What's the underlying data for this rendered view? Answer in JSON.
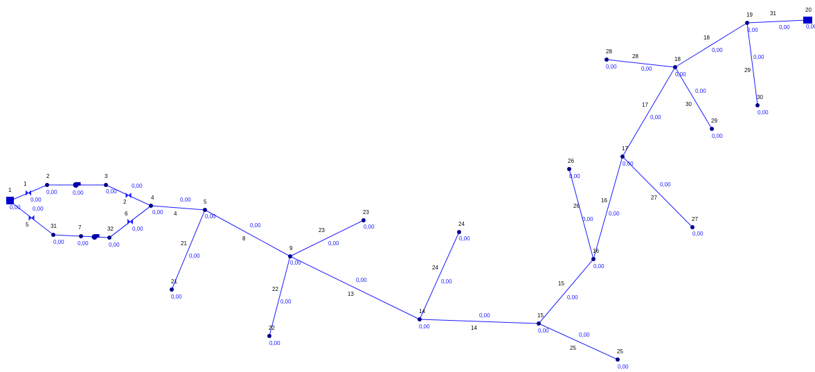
{
  "value_format": "0,00",
  "colors": {
    "pipe": "#1a1aff",
    "node": "#00008b",
    "label": "#000000",
    "value": "#1a1aff"
  },
  "nodes": [
    {
      "id": "1",
      "value": "0,00",
      "kind": "tank"
    },
    {
      "id": "2",
      "value": "0,00",
      "kind": "junction"
    },
    {
      "id": "3",
      "value": "0,00",
      "kind": "junction"
    },
    {
      "id": "4",
      "value": "0,00",
      "kind": "junction"
    },
    {
      "id": "5",
      "value": "0,00",
      "kind": "junction"
    },
    {
      "id": "7",
      "value": "0,00",
      "kind": "junction"
    },
    {
      "id": "9",
      "value": "0,00",
      "kind": "junction"
    },
    {
      "id": "14",
      "value": "0,00",
      "kind": "junction"
    },
    {
      "id": "15",
      "value": "0,00",
      "kind": "junction"
    },
    {
      "id": "16",
      "value": "0,00",
      "kind": "junction"
    },
    {
      "id": "17",
      "value": "0,00",
      "kind": "junction"
    },
    {
      "id": "18",
      "value": "0,00",
      "kind": "junction"
    },
    {
      "id": "19",
      "value": "0,00",
      "kind": "junction"
    },
    {
      "id": "20",
      "value": "0,00",
      "kind": "tank"
    },
    {
      "id": "21",
      "value": "0,00",
      "kind": "junction"
    },
    {
      "id": "22",
      "value": "0,00",
      "kind": "junction"
    },
    {
      "id": "23",
      "value": "0,00",
      "kind": "junction"
    },
    {
      "id": "24",
      "value": "0,00",
      "kind": "junction"
    },
    {
      "id": "25",
      "value": "0,00",
      "kind": "junction"
    },
    {
      "id": "26",
      "value": "0,00",
      "kind": "junction"
    },
    {
      "id": "27",
      "value": "0,00",
      "kind": "junction"
    },
    {
      "id": "28",
      "value": "0,00",
      "kind": "junction"
    },
    {
      "id": "29",
      "value": "0,00",
      "kind": "junction"
    },
    {
      "id": "30",
      "value": "0,00",
      "kind": "junction"
    },
    {
      "id": "31",
      "value": "0,00",
      "kind": "junction"
    },
    {
      "id": "32",
      "value": "0,00",
      "kind": "junction"
    }
  ],
  "links": [
    {
      "id": "1",
      "value": "0,00",
      "kind": "valve"
    },
    {
      "id": "",
      "value": "0,00",
      "kind": "pump"
    },
    {
      "id": "2",
      "value": "0,00",
      "kind": "valve"
    },
    {
      "id": "4",
      "value": "0,00",
      "kind": "pipe"
    },
    {
      "id": "5",
      "value": "0,00",
      "kind": "valve"
    },
    {
      "id": "",
      "value": "0,00",
      "kind": "pipe"
    },
    {
      "id": "",
      "value": "0,00",
      "kind": "pump"
    },
    {
      "id": "",
      "value": "0,00",
      "kind": "pipe"
    },
    {
      "id": "6",
      "value": "0,00",
      "kind": "valve"
    },
    {
      "id": "8",
      "value": "0,00",
      "kind": "pipe"
    },
    {
      "id": "21",
      "value": "0,00",
      "kind": "pipe"
    },
    {
      "id": "13",
      "value": "0,00",
      "kind": "pipe"
    },
    {
      "id": "22",
      "value": "0,00",
      "kind": "pipe"
    },
    {
      "id": "23",
      "value": "0,00",
      "kind": "pipe"
    },
    {
      "id": "14",
      "value": "0,00",
      "kind": "pipe"
    },
    {
      "id": "24",
      "value": "0,00",
      "kind": "pipe"
    },
    {
      "id": "15",
      "value": "0,00",
      "kind": "pipe"
    },
    {
      "id": "25",
      "value": "0,00",
      "kind": "pipe"
    },
    {
      "id": "16",
      "value": "0,00",
      "kind": "pipe"
    },
    {
      "id": "26",
      "value": "0,00",
      "kind": "pipe"
    },
    {
      "id": "17",
      "value": "0,00",
      "kind": "pipe"
    },
    {
      "id": "27",
      "value": "0,00",
      "kind": "pipe"
    },
    {
      "id": "18",
      "value": "0,00",
      "kind": "pipe"
    },
    {
      "id": "28",
      "value": "0,00",
      "kind": "pipe"
    },
    {
      "id": "30",
      "value": "0,00",
      "kind": "pipe"
    },
    {
      "id": "31",
      "value": "0,00",
      "kind": "pipe"
    },
    {
      "id": "29",
      "value": "0,00",
      "kind": "pipe"
    }
  ]
}
